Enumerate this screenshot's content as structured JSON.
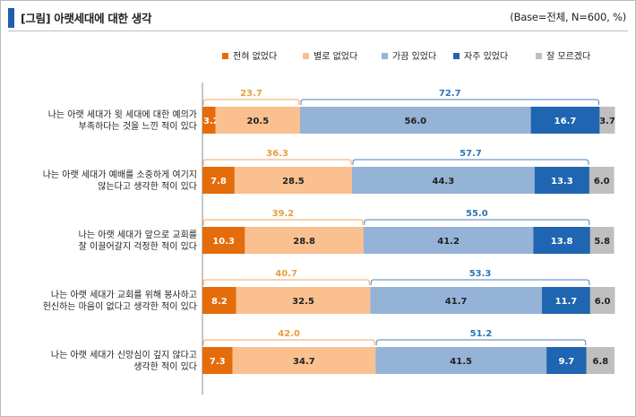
{
  "header": {
    "title": "[그림] 아랫세대에 대한 생각",
    "base": "(Base=전체, N=600, %)"
  },
  "colors": {
    "never": "#e46c0a",
    "rarely": "#fac090",
    "sometimes": "#95b3d7",
    "often": "#1f65b1",
    "unknown": "#bfbfbf",
    "negBrace": "#f4a460",
    "posBrace": "#4a7fc0",
    "negText": "#e4a040",
    "posText": "#2e75b6"
  },
  "chart_data": {
    "type": "bar",
    "orientation": "horizontal",
    "stacked": true,
    "xlim": [
      0,
      100
    ],
    "legend_position": "top-right",
    "legend": [
      "전혀 없었다",
      "별로 없었다",
      "가끔 있었다",
      "자주 있었다",
      "잘 모르겠다"
    ],
    "categories": [
      [
        "나는 아랫 세대가 윗 세대에 대한 예의가",
        "부족하다는 것을 느낀 적이 있다"
      ],
      [
        "나는 아랫 세대가 예배를 소중하게 여기지",
        "않는다고 생각한 적이 있다"
      ],
      [
        "나는 아랫 세대가 앞으로 교회를",
        "잘 이끌어갈지 걱정한 적이 있다"
      ],
      [
        "나는 아랫 세대가 교회를 위해 봉사하고",
        "헌신하는 마음이 없다고 생각한 적이 있다"
      ],
      [
        "나는 아랫 세대가 신앙심이 깊지 않다고",
        "생각한 적이 있다"
      ]
    ],
    "series": [
      {
        "name": "전혀 없었다",
        "values": [
          3.2,
          7.8,
          10.3,
          8.2,
          7.3
        ]
      },
      {
        "name": "별로 없었다",
        "values": [
          20.5,
          28.5,
          28.8,
          32.5,
          34.7
        ]
      },
      {
        "name": "가끔 있었다",
        "values": [
          56.0,
          44.3,
          41.2,
          41.7,
          41.5
        ]
      },
      {
        "name": "자주 있었다",
        "values": [
          16.7,
          13.3,
          13.8,
          11.7,
          9.7
        ]
      },
      {
        "name": "잘 모르겠다",
        "values": [
          3.7,
          6.0,
          5.8,
          6.0,
          6.8
        ]
      }
    ],
    "labels": [
      [
        "3.2",
        "20.5",
        "56.0",
        "16.7",
        "3.7"
      ],
      [
        "7.8",
        "28.5",
        "44.3",
        "13.3",
        "6.0"
      ],
      [
        "10.3",
        "28.8",
        "41.2",
        "13.8",
        "5.8"
      ],
      [
        "8.2",
        "32.5",
        "41.7",
        "11.7",
        "6.0"
      ],
      [
        "7.3",
        "34.7",
        "41.5",
        "9.7",
        "6.8"
      ]
    ],
    "negative_totals": [
      "23.7",
      "36.3",
      "39.2",
      "40.7",
      "42.0"
    ],
    "positive_totals": [
      "72.7",
      "57.7",
      "55.0",
      "53.3",
      "51.2"
    ]
  }
}
